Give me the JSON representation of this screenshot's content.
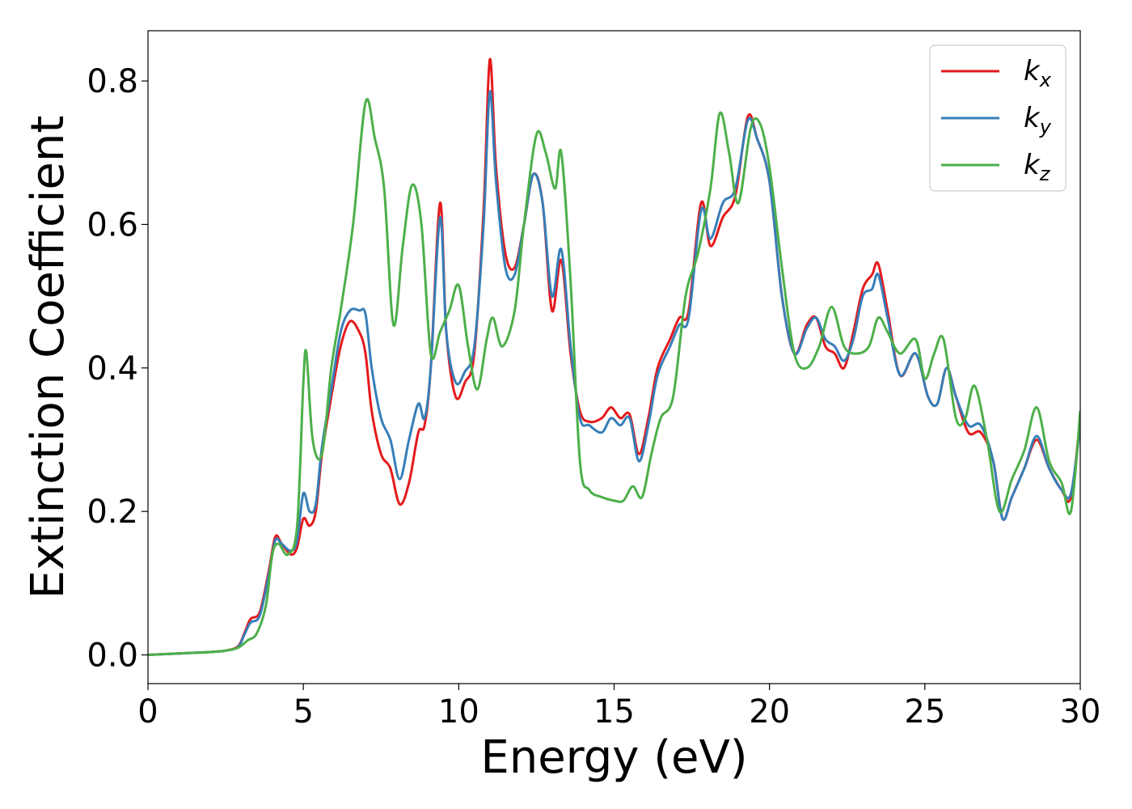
{
  "chart_data": {
    "type": "line",
    "xlabel": "Energy (eV)",
    "ylabel": "Extinction Coefficient",
    "xlim": [
      0,
      30
    ],
    "ylim": [
      -0.04,
      0.87
    ],
    "xticks": [
      0,
      5,
      10,
      15,
      20,
      25,
      30
    ],
    "xtick_labels": [
      "0",
      "5",
      "10",
      "15",
      "20",
      "25",
      "30"
    ],
    "yticks": [
      0.0,
      0.2,
      0.4,
      0.6,
      0.8
    ],
    "ytick_labels": [
      "0.0",
      "0.2",
      "0.4",
      "0.6",
      "0.8"
    ],
    "grid": false,
    "legend_position": "top-right",
    "series": [
      {
        "name": "k",
        "subscript": "x",
        "color": "#e41a1c",
        "x": [
          0,
          1,
          2,
          2.5,
          2.9,
          3.1,
          3.3,
          3.6,
          3.9,
          4.1,
          4.3,
          4.6,
          4.8,
          5.0,
          5.2,
          5.4,
          5.6,
          5.9,
          6.2,
          6.5,
          6.8,
          7.0,
          7.2,
          7.5,
          7.8,
          8.1,
          8.4,
          8.7,
          8.9,
          9.1,
          9.4,
          9.6,
          9.9,
          10.2,
          10.5,
          10.8,
          11.0,
          11.2,
          11.5,
          11.8,
          12.1,
          12.4,
          12.7,
          13.0,
          13.3,
          13.6,
          13.9,
          14.2,
          14.6,
          14.9,
          15.2,
          15.5,
          15.8,
          16.1,
          16.4,
          16.8,
          17.1,
          17.4,
          17.8,
          18.1,
          18.5,
          18.9,
          19.3,
          19.6,
          20.0,
          20.4,
          20.8,
          21.2,
          21.5,
          21.8,
          22.1,
          22.4,
          22.7,
          23.0,
          23.3,
          23.5,
          23.8,
          24.2,
          24.7,
          25.1,
          25.4,
          25.7,
          26.0,
          26.4,
          26.8,
          27.2,
          27.5,
          27.8,
          28.2,
          28.6,
          29.0,
          29.4,
          29.7,
          30.0
        ],
        "values": [
          0.0,
          0.002,
          0.004,
          0.006,
          0.012,
          0.03,
          0.05,
          0.06,
          0.12,
          0.165,
          0.155,
          0.14,
          0.15,
          0.19,
          0.18,
          0.2,
          0.28,
          0.36,
          0.43,
          0.465,
          0.45,
          0.42,
          0.34,
          0.28,
          0.26,
          0.21,
          0.24,
          0.31,
          0.32,
          0.4,
          0.63,
          0.45,
          0.36,
          0.38,
          0.42,
          0.62,
          0.83,
          0.68,
          0.56,
          0.54,
          0.6,
          0.67,
          0.63,
          0.48,
          0.55,
          0.42,
          0.34,
          0.325,
          0.33,
          0.345,
          0.33,
          0.335,
          0.28,
          0.33,
          0.4,
          0.44,
          0.47,
          0.48,
          0.63,
          0.57,
          0.61,
          0.64,
          0.75,
          0.72,
          0.66,
          0.5,
          0.42,
          0.46,
          0.47,
          0.43,
          0.42,
          0.4,
          0.45,
          0.51,
          0.53,
          0.545,
          0.48,
          0.39,
          0.42,
          0.36,
          0.35,
          0.4,
          0.36,
          0.31,
          0.31,
          0.27,
          0.19,
          0.22,
          0.26,
          0.3,
          0.26,
          0.23,
          0.22,
          0.33
        ]
      },
      {
        "name": "k",
        "subscript": "y",
        "color": "#377eb8",
        "x": [
          0,
          1,
          2,
          2.5,
          2.9,
          3.1,
          3.3,
          3.6,
          3.9,
          4.1,
          4.3,
          4.6,
          4.8,
          5.0,
          5.2,
          5.4,
          5.6,
          5.9,
          6.2,
          6.5,
          6.8,
          7.0,
          7.2,
          7.5,
          7.8,
          8.1,
          8.4,
          8.7,
          8.9,
          9.1,
          9.4,
          9.6,
          9.9,
          10.2,
          10.5,
          10.8,
          11.0,
          11.2,
          11.5,
          11.8,
          12.1,
          12.4,
          12.7,
          13.0,
          13.3,
          13.6,
          13.9,
          14.2,
          14.6,
          14.9,
          15.2,
          15.5,
          15.8,
          16.1,
          16.4,
          16.8,
          17.1,
          17.4,
          17.8,
          18.1,
          18.5,
          18.9,
          19.3,
          19.6,
          20.0,
          20.4,
          20.8,
          21.2,
          21.5,
          21.8,
          22.1,
          22.4,
          22.7,
          23.0,
          23.3,
          23.5,
          23.8,
          24.2,
          24.7,
          25.1,
          25.4,
          25.7,
          26.0,
          26.4,
          26.8,
          27.2,
          27.5,
          27.8,
          28.2,
          28.6,
          29.0,
          29.4,
          29.7,
          30.0
        ],
        "values": [
          0.0,
          0.002,
          0.004,
          0.006,
          0.011,
          0.028,
          0.045,
          0.055,
          0.115,
          0.16,
          0.155,
          0.145,
          0.16,
          0.225,
          0.2,
          0.21,
          0.29,
          0.37,
          0.45,
          0.48,
          0.48,
          0.475,
          0.4,
          0.33,
          0.3,
          0.245,
          0.3,
          0.35,
          0.33,
          0.4,
          0.61,
          0.45,
          0.38,
          0.395,
          0.43,
          0.6,
          0.785,
          0.66,
          0.54,
          0.53,
          0.6,
          0.67,
          0.63,
          0.5,
          0.565,
          0.43,
          0.33,
          0.32,
          0.31,
          0.33,
          0.32,
          0.33,
          0.27,
          0.32,
          0.39,
          0.43,
          0.46,
          0.47,
          0.62,
          0.58,
          0.63,
          0.65,
          0.745,
          0.72,
          0.66,
          0.5,
          0.42,
          0.455,
          0.47,
          0.44,
          0.43,
          0.41,
          0.44,
          0.5,
          0.51,
          0.53,
          0.47,
          0.39,
          0.42,
          0.36,
          0.35,
          0.4,
          0.36,
          0.32,
          0.32,
          0.27,
          0.19,
          0.22,
          0.26,
          0.305,
          0.26,
          0.23,
          0.225,
          0.32
        ]
      },
      {
        "name": "k",
        "subscript": "z",
        "color": "#4daf4a",
        "x": [
          0,
          1,
          2,
          2.5,
          2.9,
          3.2,
          3.5,
          3.8,
          4.0,
          4.2,
          4.5,
          4.8,
          5.0,
          5.1,
          5.3,
          5.6,
          5.9,
          6.2,
          6.6,
          7.0,
          7.3,
          7.6,
          7.9,
          8.2,
          8.5,
          8.8,
          9.1,
          9.4,
          9.7,
          10.0,
          10.3,
          10.6,
          10.9,
          11.1,
          11.4,
          11.8,
          12.1,
          12.5,
          12.8,
          13.1,
          13.3,
          13.6,
          13.9,
          14.2,
          14.6,
          15.0,
          15.3,
          15.6,
          15.9,
          16.2,
          16.5,
          16.9,
          17.3,
          17.7,
          18.1,
          18.4,
          18.7,
          19.0,
          19.4,
          19.7,
          20.0,
          20.4,
          20.8,
          21.2,
          21.6,
          22.0,
          22.4,
          22.8,
          23.2,
          23.5,
          23.8,
          24.2,
          24.7,
          25.0,
          25.3,
          25.6,
          26.0,
          26.3,
          26.6,
          27.0,
          27.4,
          27.8,
          28.2,
          28.6,
          29.0,
          29.4,
          29.7,
          30.0
        ],
        "values": [
          0.0,
          0.002,
          0.004,
          0.006,
          0.01,
          0.02,
          0.03,
          0.07,
          0.14,
          0.155,
          0.14,
          0.18,
          0.38,
          0.42,
          0.3,
          0.28,
          0.4,
          0.48,
          0.6,
          0.77,
          0.72,
          0.65,
          0.46,
          0.57,
          0.655,
          0.6,
          0.42,
          0.45,
          0.48,
          0.515,
          0.43,
          0.37,
          0.44,
          0.47,
          0.43,
          0.48,
          0.6,
          0.725,
          0.7,
          0.65,
          0.7,
          0.52,
          0.27,
          0.23,
          0.22,
          0.215,
          0.215,
          0.235,
          0.22,
          0.28,
          0.33,
          0.36,
          0.5,
          0.56,
          0.65,
          0.755,
          0.7,
          0.63,
          0.735,
          0.74,
          0.68,
          0.54,
          0.42,
          0.4,
          0.43,
          0.485,
          0.43,
          0.42,
          0.43,
          0.47,
          0.45,
          0.42,
          0.44,
          0.385,
          0.42,
          0.44,
          0.33,
          0.33,
          0.375,
          0.3,
          0.2,
          0.245,
          0.285,
          0.345,
          0.27,
          0.24,
          0.2,
          0.34
        ]
      }
    ]
  }
}
